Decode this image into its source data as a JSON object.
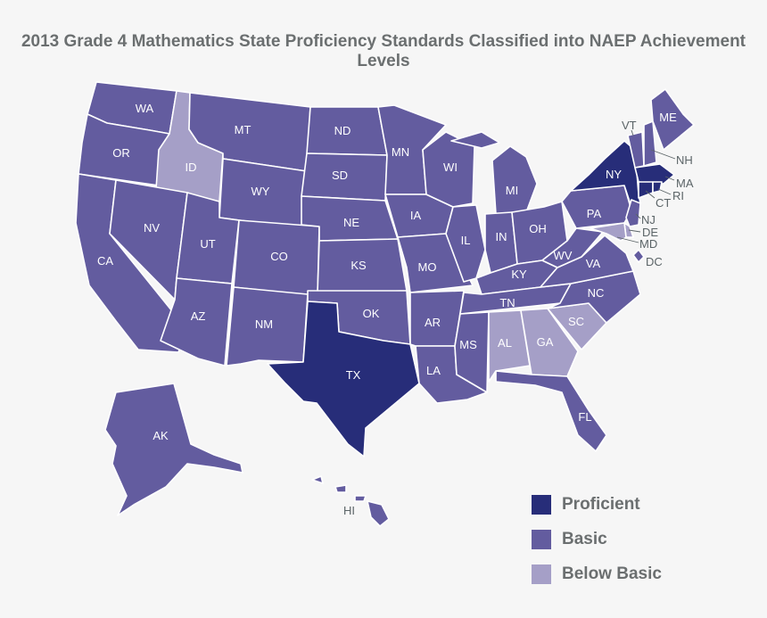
{
  "title": "2013 Grade 4 Mathematics State Proficiency Standards Classified into NAEP Achievement Levels",
  "colors": {
    "proficient": "#272d79",
    "basic": "#635c9f",
    "below_basic": "#a59fc7",
    "background": "#f6f6f6"
  },
  "legend": [
    {
      "label": "Proficient",
      "color": "#272d79"
    },
    {
      "label": "Basic",
      "color": "#635c9f"
    },
    {
      "label": "Below Basic",
      "color": "#a59fc7"
    }
  ],
  "states": {
    "WA": "WA",
    "OR": "OR",
    "CA": "CA",
    "ID": "ID",
    "NV": "NV",
    "MT": "MT",
    "WY": "WY",
    "UT": "UT",
    "AZ": "AZ",
    "CO": "CO",
    "NM": "NM",
    "ND": "ND",
    "SD": "SD",
    "NE": "NE",
    "KS": "KS",
    "OK": "OK",
    "TX": "TX",
    "MN": "MN",
    "IA": "IA",
    "MO": "MO",
    "AR": "AR",
    "LA": "LA",
    "WI": "WI",
    "IL": "IL",
    "MI": "MI",
    "IN": "IN",
    "OH": "OH",
    "KY": "KY",
    "TN": "TN",
    "MS": "MS",
    "AL": "AL",
    "GA": "GA",
    "FL": "FL",
    "SC": "SC",
    "NC": "NC",
    "VA": "VA",
    "WV": "WV",
    "PA": "PA",
    "NY": "NY",
    "ME": "ME",
    "VT": "VT",
    "NH": "NH",
    "MA": "MA",
    "RI": "RI",
    "CT": "CT",
    "NJ": "NJ",
    "DE": "DE",
    "MD": "MD",
    "DC": "DC",
    "AK": "AK",
    "HI": "HI"
  }
}
